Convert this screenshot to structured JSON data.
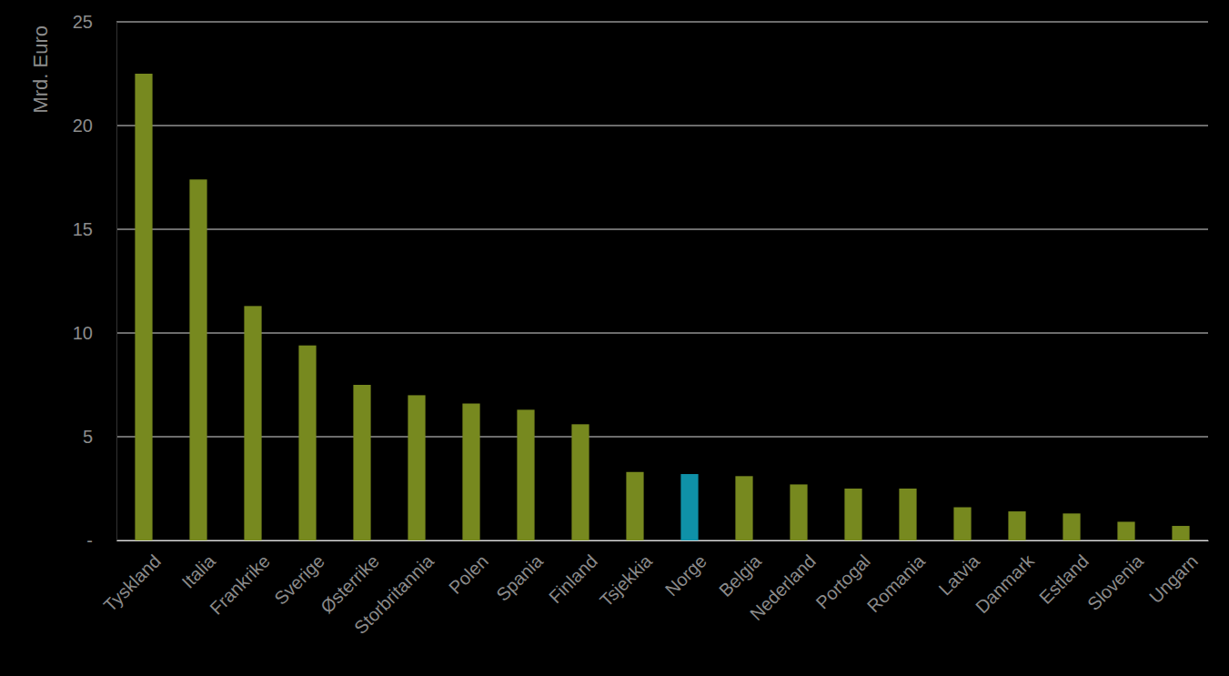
{
  "chart_data": {
    "type": "bar",
    "y_label": "Mrd. Euro",
    "categories": [
      "Tyskland",
      "Italia",
      "Frankrike",
      "Sverige",
      "Østerrike",
      "Storbritannia",
      "Polen",
      "Spania",
      "Finland",
      "Tsjekkia",
      "Norge",
      "Belgia",
      "Nederland",
      "Portogal",
      "Romania",
      "Latvia",
      "Danmark",
      "Estland",
      "Slovenia",
      "Ungarn"
    ],
    "values": [
      22.5,
      17.4,
      11.3,
      9.4,
      7.5,
      7.0,
      6.6,
      6.3,
      5.6,
      3.3,
      3.2,
      3.1,
      2.7,
      2.5,
      2.5,
      1.6,
      1.4,
      1.3,
      0.9,
      0.7
    ],
    "colors": [
      "#77891f",
      "#77891f",
      "#77891f",
      "#77891f",
      "#77891f",
      "#77891f",
      "#77891f",
      "#77891f",
      "#77891f",
      "#77891f",
      "#0f91a8",
      "#77891f",
      "#77891f",
      "#77891f",
      "#77891f",
      "#77891f",
      "#77891f",
      "#77891f",
      "#77891f",
      "#77891f"
    ],
    "ylim": [
      0,
      25
    ],
    "yticks": [
      {
        "value": 0,
        "label": "-"
      },
      5,
      10,
      15,
      20,
      25
    ],
    "grid": true
  }
}
